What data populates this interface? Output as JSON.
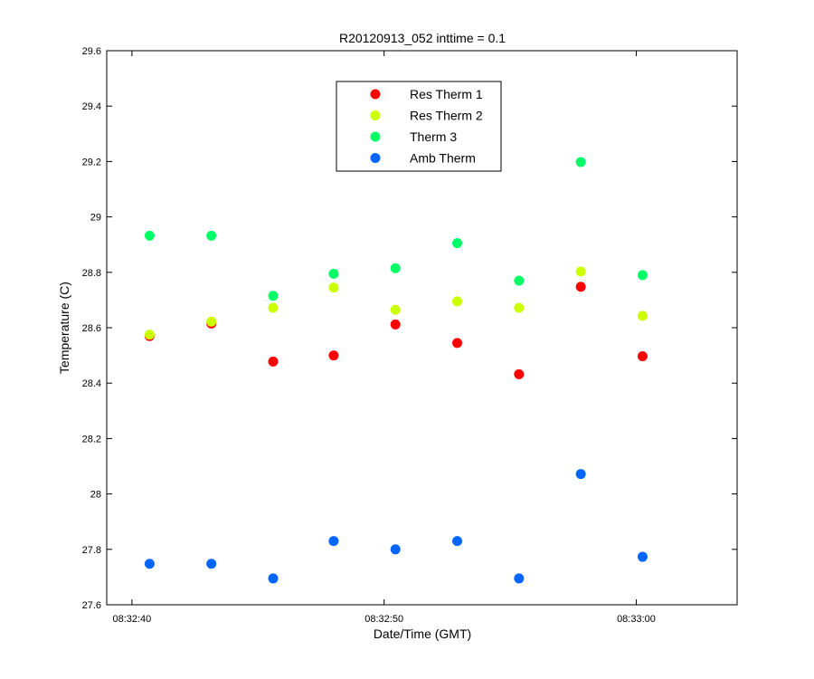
{
  "chart_data": {
    "type": "scatter",
    "title": "R20120913_052 inttime = 0.1",
    "xlabel": "Date/Time (GMT)",
    "ylabel": "Temperature (C)",
    "x_unit": "seconds after 08:32:40",
    "xlim": [
      -1,
      24
    ],
    "ylim": [
      27.6,
      29.6
    ],
    "x_ticks": [
      {
        "value": 0,
        "label": "08:32:40"
      },
      {
        "value": 10,
        "label": "08:32:50"
      },
      {
        "value": 20,
        "label": "08:33:00"
      }
    ],
    "y_ticks": [
      {
        "value": 27.6,
        "label": "27.6"
      },
      {
        "value": 27.8,
        "label": "27.8"
      },
      {
        "value": 28.0,
        "label": "28"
      },
      {
        "value": 28.2,
        "label": "28.2"
      },
      {
        "value": 28.4,
        "label": "28.4"
      },
      {
        "value": 28.6,
        "label": "28.6"
      },
      {
        "value": 28.8,
        "label": "28.8"
      },
      {
        "value": 29.0,
        "label": "29"
      },
      {
        "value": 29.2,
        "label": "29.2"
      },
      {
        "value": 29.4,
        "label": "29.4"
      },
      {
        "value": 29.6,
        "label": "29.6"
      }
    ],
    "x": [
      0.7,
      3.15,
      5.6,
      8.0,
      10.45,
      12.9,
      15.35,
      17.8,
      20.25
    ],
    "series": [
      {
        "name": "Res Therm 1",
        "color": "#ff0000",
        "values": [
          28.57,
          28.615,
          28.478,
          28.5,
          28.612,
          28.545,
          28.432,
          28.748,
          28.497
        ]
      },
      {
        "name": "Res Therm 2",
        "color": "#ccff00",
        "values": [
          28.575,
          28.622,
          28.672,
          28.745,
          28.665,
          28.695,
          28.672,
          28.803,
          28.643
        ]
      },
      {
        "name": "Therm 3",
        "color": "#00ff66",
        "values": [
          28.932,
          28.932,
          28.715,
          28.795,
          28.815,
          28.905,
          28.77,
          29.198,
          28.79
        ]
      },
      {
        "name": "Amb Therm",
        "color": "#0066ff",
        "values": [
          27.748,
          27.748,
          27.695,
          27.83,
          27.8,
          27.83,
          27.695,
          28.072,
          27.773
        ]
      }
    ],
    "legend_position": "top-center",
    "grid": false
  }
}
